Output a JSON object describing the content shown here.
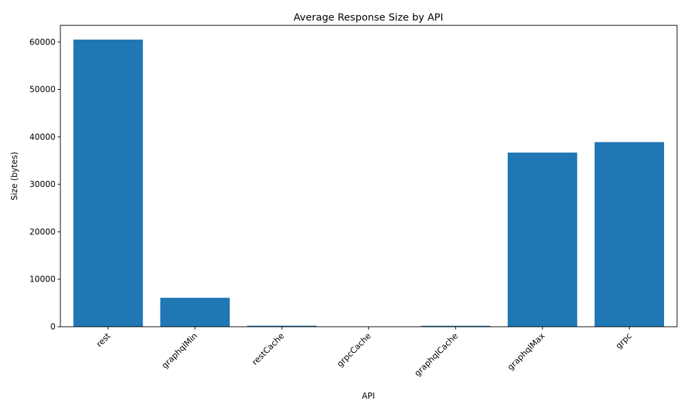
{
  "chart_data": {
    "type": "bar",
    "title": "Average Response Size by API",
    "xlabel": "API",
    "ylabel": "Size (bytes)",
    "categories": [
      "rest",
      "graphqlMin",
      "restCache",
      "grpcCache",
      "graphqlCache",
      "graphqlMax",
      "grpc"
    ],
    "values": [
      60500,
      6100,
      220,
      50,
      200,
      36700,
      38900
    ],
    "ylim": [
      0,
      63500
    ],
    "yticks": [
      0,
      10000,
      20000,
      30000,
      40000,
      50000,
      60000
    ],
    "ytick_labels": [
      "0",
      "10000",
      "20000",
      "30000",
      "40000",
      "50000",
      "60000"
    ],
    "bar_color": "#1f77b4",
    "grid": false,
    "xtick_rotation_deg": 45
  }
}
